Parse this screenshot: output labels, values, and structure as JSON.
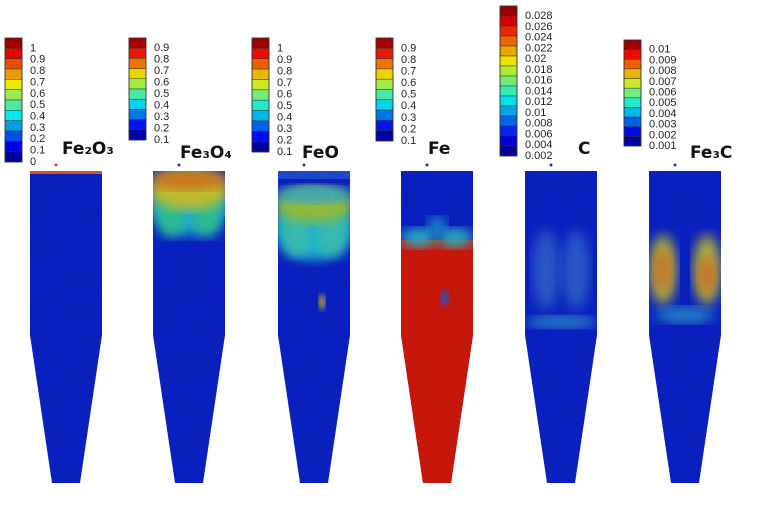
{
  "panels": [
    {
      "title": "Fe₂O₃",
      "species": "Fe2O3",
      "colorbar_labels": [
        "1",
        "0.9",
        "0.8",
        "0.7",
        "0.6",
        "0.5",
        "0.4",
        "0.3",
        "0.2",
        "0.1",
        "0"
      ],
      "pattern": "top-line"
    },
    {
      "title": "Fe₃O₄",
      "species": "Fe3O4",
      "colorbar_labels": [
        "0.9",
        "0.8",
        "0.7",
        "0.6",
        "0.5",
        "0.4",
        "0.3",
        "0.2",
        "0.1"
      ],
      "pattern": "top-band-hot"
    },
    {
      "title": "FeO",
      "species": "FeO",
      "colorbar_labels": [
        "1",
        "0.9",
        "0.8",
        "0.7",
        "0.6",
        "0.5",
        "0.4",
        "0.3",
        "0.2",
        "0.1"
      ],
      "pattern": "mid-band"
    },
    {
      "title": "Fe",
      "species": "Fe",
      "colorbar_labels": [
        "0.9",
        "0.8",
        "0.7",
        "0.6",
        "0.5",
        "0.4",
        "0.3",
        "0.2",
        "0.1"
      ],
      "pattern": "lower-red"
    },
    {
      "title": "C",
      "species": "C",
      "colorbar_labels": [
        "0.028",
        "0.026",
        "0.024",
        "0.022",
        "0.02",
        "0.018",
        "0.016",
        "0.014",
        "0.012",
        "0.01",
        "0.008",
        "0.006",
        "0.004",
        "0.002"
      ],
      "pattern": "faint-mid"
    },
    {
      "title": "Fe₃C",
      "species": "Fe3C",
      "colorbar_labels": [
        "0.01",
        "0.009",
        "0.008",
        "0.007",
        "0.006",
        "0.005",
        "0.004",
        "0.003",
        "0.002",
        "0.001"
      ],
      "pattern": "side-patches"
    }
  ],
  "colors": {
    "low": "#0a28d8",
    "high": "#e8140a"
  }
}
